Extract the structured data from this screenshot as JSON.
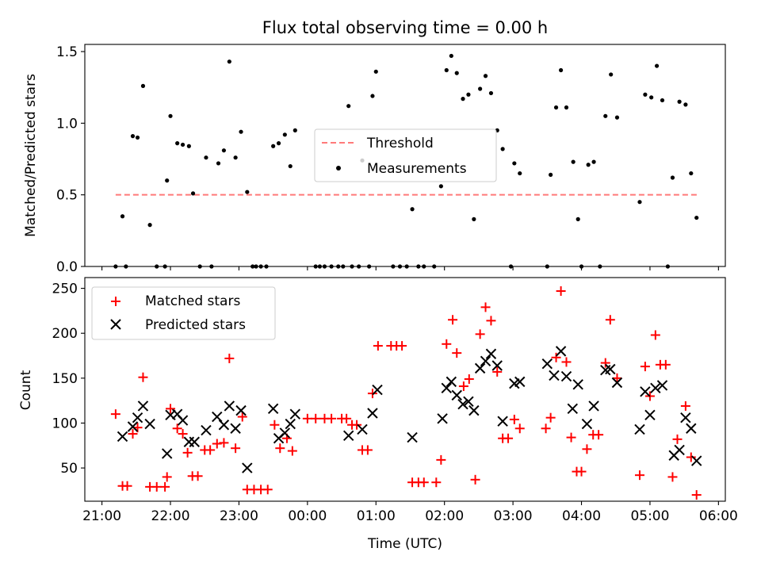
{
  "figure": {
    "title": "Flux total observing time = 0.00 h"
  },
  "colors": {
    "threshold": "#ff7a7a",
    "measurements": "#000000",
    "matched": "#ff0000",
    "predicted": "#000000"
  },
  "chart_data": [
    {
      "type": "scatter",
      "title": "Flux total observing time = 0.00 h",
      "xlabel": "",
      "ylabel": "Matched/Predicted stars",
      "xlim": [
        20.75,
        30.1
      ],
      "ylim": [
        0.0,
        1.55
      ],
      "yticks": [
        0.0,
        0.5,
        1.0,
        1.5
      ],
      "ytick_labels": [
        "0.0",
        "0.5",
        "1.0",
        "1.5"
      ],
      "legend_placement": "center",
      "legend": [
        "Threshold",
        "Measurements"
      ],
      "series": [
        {
          "name": "Threshold",
          "style": "dashed-line",
          "x": [
            21.2,
            29.7
          ],
          "y": [
            0.5,
            0.5
          ]
        },
        {
          "name": "Measurements",
          "style": "dot",
          "points": [
            [
              21.2,
              0.0
            ],
            [
              21.3,
              0.35
            ],
            [
              21.35,
              0.0
            ],
            [
              21.45,
              0.91
            ],
            [
              21.52,
              0.9
            ],
            [
              21.6,
              1.26
            ],
            [
              21.7,
              0.29
            ],
            [
              21.8,
              0.0
            ],
            [
              21.92,
              0.0
            ],
            [
              21.95,
              0.6
            ],
            [
              22.0,
              1.05
            ],
            [
              22.1,
              0.86
            ],
            [
              22.18,
              0.85
            ],
            [
              22.27,
              0.84
            ],
            [
              22.33,
              0.51
            ],
            [
              22.43,
              0.0
            ],
            [
              22.52,
              0.76
            ],
            [
              22.6,
              0.0
            ],
            [
              22.7,
              0.72
            ],
            [
              22.78,
              0.81
            ],
            [
              22.86,
              1.43
            ],
            [
              22.95,
              0.76
            ],
            [
              23.03,
              0.94
            ],
            [
              23.12,
              0.52
            ],
            [
              23.2,
              0.0
            ],
            [
              23.25,
              0.0
            ],
            [
              23.32,
              0.0
            ],
            [
              23.4,
              0.0
            ],
            [
              23.5,
              0.84
            ],
            [
              23.58,
              0.86
            ],
            [
              23.67,
              0.92
            ],
            [
              23.75,
              0.7
            ],
            [
              23.82,
              0.95
            ],
            [
              24.12,
              0.0
            ],
            [
              24.18,
              0.0
            ],
            [
              24.25,
              0.0
            ],
            [
              24.35,
              0.0
            ],
            [
              24.45,
              0.0
            ],
            [
              24.52,
              0.0
            ],
            [
              24.6,
              1.12
            ],
            [
              24.65,
              0.0
            ],
            [
              24.75,
              0.0
            ],
            [
              24.8,
              0.74
            ],
            [
              24.9,
              0.0
            ],
            [
              24.95,
              1.19
            ],
            [
              25.0,
              1.36
            ],
            [
              25.25,
              0.0
            ],
            [
              25.35,
              0.0
            ],
            [
              25.45,
              0.0
            ],
            [
              25.53,
              0.4
            ],
            [
              25.62,
              0.0
            ],
            [
              25.7,
              0.0
            ],
            [
              25.85,
              0.0
            ],
            [
              25.95,
              0.56
            ],
            [
              26.03,
              1.37
            ],
            [
              26.1,
              1.47
            ],
            [
              26.18,
              1.35
            ],
            [
              26.27,
              1.17
            ],
            [
              26.35,
              1.2
            ],
            [
              26.43,
              0.33
            ],
            [
              26.52,
              1.24
            ],
            [
              26.6,
              1.33
            ],
            [
              26.68,
              1.21
            ],
            [
              26.77,
              0.95
            ],
            [
              26.85,
              0.82
            ],
            [
              26.97,
              0.0
            ],
            [
              27.02,
              0.72
            ],
            [
              27.1,
              0.65
            ],
            [
              27.5,
              0.0
            ],
            [
              27.55,
              0.64
            ],
            [
              27.63,
              1.11
            ],
            [
              27.7,
              1.37
            ],
            [
              27.78,
              1.11
            ],
            [
              27.88,
              0.73
            ],
            [
              27.95,
              0.33
            ],
            [
              28.0,
              0.0
            ],
            [
              28.1,
              0.71
            ],
            [
              28.18,
              0.73
            ],
            [
              28.27,
              0.0
            ],
            [
              28.35,
              1.05
            ],
            [
              28.43,
              1.34
            ],
            [
              28.52,
              1.04
            ],
            [
              28.85,
              0.45
            ],
            [
              28.93,
              1.2
            ],
            [
              29.02,
              1.18
            ],
            [
              29.1,
              1.4
            ],
            [
              29.18,
              1.16
            ],
            [
              29.26,
              0.0
            ],
            [
              29.33,
              0.62
            ],
            [
              29.43,
              1.15
            ],
            [
              29.52,
              1.13
            ],
            [
              29.6,
              0.65
            ],
            [
              29.68,
              0.34
            ]
          ]
        }
      ]
    },
    {
      "type": "scatter",
      "title": "",
      "xlabel": "Time (UTC)",
      "ylabel": "Count",
      "xlim": [
        20.75,
        30.1
      ],
      "ylim": [
        13,
        262
      ],
      "xticks": [
        21,
        22,
        23,
        24,
        25,
        26,
        27,
        28,
        29,
        30
      ],
      "xtick_labels": [
        "21:00",
        "22:00",
        "23:00",
        "00:00",
        "01:00",
        "02:00",
        "03:00",
        "04:00",
        "05:00",
        "06:00"
      ],
      "yticks": [
        50,
        100,
        150,
        200,
        250
      ],
      "ytick_labels": [
        "50",
        "100",
        "150",
        "200",
        "250"
      ],
      "legend_placement": "upper left",
      "legend": [
        "Matched stars",
        "Predicted stars"
      ],
      "series": [
        {
          "name": "Matched stars",
          "marker": "+",
          "points": [
            [
              21.2,
              110
            ],
            [
              21.3,
              30
            ],
            [
              21.37,
              30
            ],
            [
              21.45,
              88
            ],
            [
              21.52,
              95
            ],
            [
              21.6,
              151
            ],
            [
              21.7,
              29
            ],
            [
              21.8,
              29
            ],
            [
              21.92,
              29
            ],
            [
              21.95,
              40
            ],
            [
              22.0,
              116
            ],
            [
              22.1,
              94
            ],
            [
              22.18,
              88
            ],
            [
              22.25,
              67
            ],
            [
              22.32,
              41
            ],
            [
              22.4,
              41
            ],
            [
              22.5,
              70
            ],
            [
              22.58,
              70
            ],
            [
              22.68,
              77
            ],
            [
              22.78,
              78
            ],
            [
              22.86,
              172
            ],
            [
              22.95,
              72
            ],
            [
              23.05,
              107
            ],
            [
              23.12,
              26
            ],
            [
              23.22,
              26
            ],
            [
              23.32,
              26
            ],
            [
              23.42,
              26
            ],
            [
              23.52,
              98
            ],
            [
              23.6,
              72
            ],
            [
              23.7,
              83
            ],
            [
              23.78,
              69
            ],
            [
              24.0,
              105
            ],
            [
              24.12,
              105
            ],
            [
              24.25,
              105
            ],
            [
              24.35,
              105
            ],
            [
              24.5,
              105
            ],
            [
              24.57,
              105
            ],
            [
              24.65,
              98
            ],
            [
              24.72,
              98
            ],
            [
              24.8,
              70
            ],
            [
              24.88,
              70
            ],
            [
              24.95,
              133
            ],
            [
              25.03,
              186
            ],
            [
              25.22,
              186
            ],
            [
              25.3,
              186
            ],
            [
              25.38,
              186
            ],
            [
              25.53,
              34
            ],
            [
              25.62,
              34
            ],
            [
              25.7,
              34
            ],
            [
              25.88,
              34
            ],
            [
              25.95,
              59
            ],
            [
              26.03,
              188
            ],
            [
              26.12,
              215
            ],
            [
              26.18,
              178
            ],
            [
              26.28,
              141
            ],
            [
              26.36,
              149
            ],
            [
              26.45,
              37
            ],
            [
              26.52,
              199
            ],
            [
              26.6,
              229
            ],
            [
              26.68,
              214
            ],
            [
              26.77,
              157
            ],
            [
              26.85,
              83
            ],
            [
              26.93,
              83
            ],
            [
              27.02,
              104
            ],
            [
              27.1,
              94
            ],
            [
              27.48,
              94
            ],
            [
              27.55,
              106
            ],
            [
              27.63,
              173
            ],
            [
              27.7,
              247
            ],
            [
              27.78,
              168
            ],
            [
              27.85,
              84
            ],
            [
              27.93,
              46
            ],
            [
              28.0,
              46
            ],
            [
              28.08,
              71
            ],
            [
              28.17,
              87
            ],
            [
              28.25,
              87
            ],
            [
              28.35,
              167
            ],
            [
              28.42,
              215
            ],
            [
              28.52,
              150
            ],
            [
              28.85,
              42
            ],
            [
              28.93,
              163
            ],
            [
              29.0,
              130
            ],
            [
              29.08,
              198
            ],
            [
              29.15,
              165
            ],
            [
              29.23,
              165
            ],
            [
              29.33,
              40
            ],
            [
              29.4,
              82
            ],
            [
              29.52,
              119
            ],
            [
              29.6,
              62
            ],
            [
              29.68,
              20
            ]
          ]
        },
        {
          "name": "Predicted stars",
          "marker": "x",
          "points": [
            [
              21.3,
              85
            ],
            [
              21.45,
              96
            ],
            [
              21.52,
              106
            ],
            [
              21.6,
              119
            ],
            [
              21.7,
              99
            ],
            [
              21.95,
              66
            ],
            [
              22.0,
              109
            ],
            [
              22.1,
              110
            ],
            [
              22.18,
              103
            ],
            [
              22.27,
              79
            ],
            [
              22.35,
              79
            ],
            [
              22.52,
              92
            ],
            [
              22.68,
              107
            ],
            [
              22.78,
              98
            ],
            [
              22.86,
              119
            ],
            [
              22.95,
              94
            ],
            [
              23.03,
              114
            ],
            [
              23.12,
              50
            ],
            [
              23.5,
              116
            ],
            [
              23.58,
              83
            ],
            [
              23.67,
              89
            ],
            [
              23.75,
              99
            ],
            [
              23.82,
              110
            ],
            [
              24.6,
              86
            ],
            [
              24.8,
              93
            ],
            [
              24.95,
              111
            ],
            [
              25.02,
              137
            ],
            [
              25.53,
              84
            ],
            [
              25.97,
              105
            ],
            [
              26.03,
              139
            ],
            [
              26.1,
              146
            ],
            [
              26.18,
              131
            ],
            [
              26.27,
              121
            ],
            [
              26.35,
              124
            ],
            [
              26.43,
              114
            ],
            [
              26.52,
              161
            ],
            [
              26.6,
              169
            ],
            [
              26.68,
              177
            ],
            [
              26.77,
              164
            ],
            [
              26.85,
              102
            ],
            [
              27.02,
              144
            ],
            [
              27.1,
              146
            ],
            [
              27.5,
              166
            ],
            [
              27.6,
              153
            ],
            [
              27.7,
              180
            ],
            [
              27.78,
              152
            ],
            [
              27.87,
              116
            ],
            [
              27.95,
              143
            ],
            [
              28.08,
              99
            ],
            [
              28.18,
              119
            ],
            [
              28.35,
              159
            ],
            [
              28.42,
              160
            ],
            [
              28.52,
              145
            ],
            [
              28.85,
              93
            ],
            [
              28.93,
              135
            ],
            [
              29.0,
              109
            ],
            [
              29.08,
              139
            ],
            [
              29.18,
              142
            ],
            [
              29.35,
              64
            ],
            [
              29.43,
              70
            ],
            [
              29.52,
              106
            ],
            [
              29.6,
              94
            ],
            [
              29.68,
              58
            ]
          ]
        }
      ]
    }
  ]
}
